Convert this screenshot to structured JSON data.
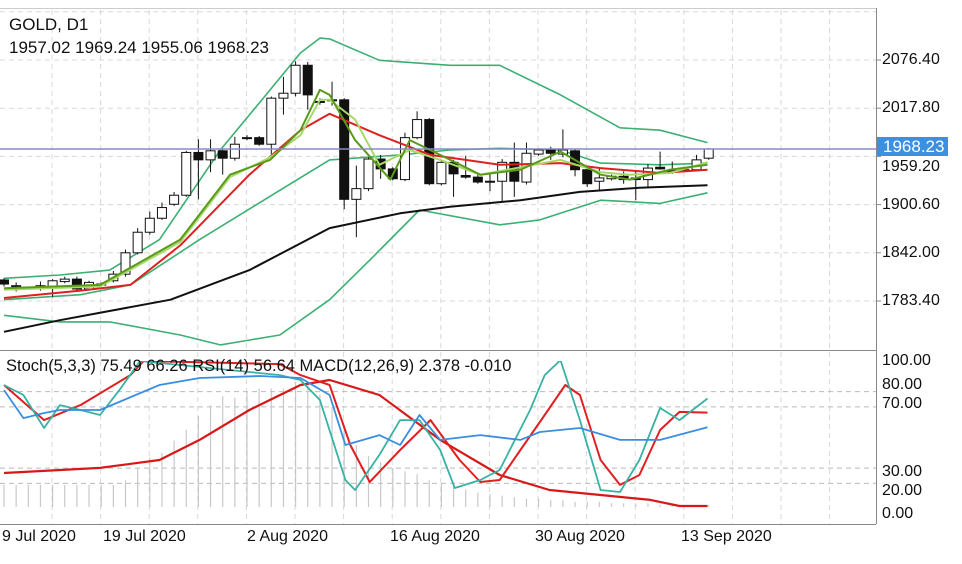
{
  "header": {
    "symbol_timeframe": "GOLD, D1",
    "ohlc": "1957.02 1969.24 1955.06 1968.23"
  },
  "indicator_header": "Stoch(5,3,3) 75.49 66.26 RSI(14) 56.64 MACD(12,26,9) 2.378 -0.010",
  "price_axis": {
    "ticks": [
      "2076.40",
      "2017.80",
      "1959.20",
      "1900.60",
      "1842.00",
      "1783.40"
    ],
    "current_price": "1968.23",
    "range": [
      1734.0,
      2096.0
    ]
  },
  "osc_axis": {
    "ticks": [
      "100.00",
      "80.00",
      "70.00",
      "30.00",
      "20.00",
      "0.00"
    ]
  },
  "date_axis": [
    "9 Jul 2020",
    "19 Jul 2020",
    "2 Aug 2020",
    "16 Aug 2020",
    "30 Aug 2020",
    "13 Sep 2020"
  ],
  "colors": {
    "bollinger": "#3cb073",
    "sma_long": "#111111",
    "ma_red": "#e02020",
    "ma_dark_green": "#5a9a1a",
    "ma_light_green": "#a6d86a",
    "stoch_k": "#38b2a4",
    "stoch_d": "#e02020",
    "rsi": "#3a8ee0",
    "macd_signal": "#d81818",
    "macd_hist": "#c8c8c8",
    "price_line": "#8a88c8",
    "price_tag": "#3d8fe0"
  },
  "chart_data": {
    "type": "candlestick",
    "title": "GOLD, D1",
    "ylim": [
      1734.0,
      2096.0
    ],
    "candles": [
      [
        1809,
        1811,
        1801,
        1804
      ],
      [
        1802,
        1806,
        1795,
        1798
      ],
      [
        1799,
        1801,
        1798,
        1800
      ],
      [
        1799,
        1807,
        1796,
        1802
      ],
      [
        1800,
        1810,
        1788,
        1808
      ],
      [
        1807,
        1813,
        1805,
        1810
      ],
      [
        1810,
        1813,
        1795,
        1798
      ],
      [
        1798,
        1808,
        1796,
        1806
      ],
      [
        1804,
        1806,
        1802,
        1804
      ],
      [
        1808,
        1820,
        1806,
        1816
      ],
      [
        1816,
        1846,
        1813,
        1842
      ],
      [
        1842,
        1872,
        1840,
        1867
      ],
      [
        1867,
        1892,
        1864,
        1884
      ],
      [
        1884,
        1903,
        1882,
        1897
      ],
      [
        1901,
        1916,
        1899,
        1912
      ],
      [
        1912,
        1966,
        1910,
        1964
      ],
      [
        1964,
        1980,
        1907,
        1955
      ],
      [
        1955,
        1980,
        1940,
        1966
      ],
      [
        1966,
        1968,
        1937,
        1957
      ],
      [
        1957,
        1983,
        1954,
        1974
      ],
      [
        1982,
        1985,
        1979,
        1982
      ],
      [
        1982,
        1984,
        1972,
        1974
      ],
      [
        1974,
        2032,
        1962,
        2030
      ],
      [
        2030,
        2056,
        2010,
        2036
      ],
      [
        2036,
        2075,
        2032,
        2070
      ],
      [
        2070,
        2074,
        2016,
        2034
      ],
      [
        2026,
        2030,
        2022,
        2026
      ],
      [
        2028,
        2050,
        2021,
        2028
      ],
      [
        2028,
        2030,
        1895,
        1907
      ],
      [
        1907,
        1948,
        1861,
        1920
      ],
      [
        1920,
        1958,
        1917,
        1956
      ],
      [
        1956,
        1961,
        1932,
        1944
      ],
      [
        1944,
        1946,
        1930,
        1932
      ],
      [
        1931,
        1988,
        1929,
        1982
      ],
      [
        1982,
        2014,
        1980,
        2004
      ],
      [
        2004,
        2006,
        1924,
        1926
      ],
      [
        1926,
        1955,
        1924,
        1952
      ],
      [
        1952,
        1955,
        1910,
        1938
      ],
      [
        1936,
        1960,
        1932,
        1934
      ],
      [
        1934,
        1937,
        1926,
        1928
      ],
      [
        1929,
        1940,
        1917,
        1929
      ],
      [
        1929,
        1956,
        1904,
        1952
      ],
      [
        1952,
        1976,
        1910,
        1929
      ],
      [
        1928,
        1976,
        1925,
        1963
      ],
      [
        1962,
        1969,
        1960,
        1967
      ],
      [
        1967,
        1971,
        1955,
        1963
      ],
      [
        1962,
        1992,
        1958,
        1967
      ],
      [
        1966,
        1968,
        1935,
        1943
      ],
      [
        1943,
        1944,
        1922,
        1926
      ],
      [
        1929,
        1946,
        1918,
        1933
      ],
      [
        1932,
        1937,
        1930,
        1935
      ],
      [
        1935,
        1941,
        1926,
        1931
      ],
      [
        1933,
        1941,
        1906,
        1931
      ],
      [
        1931,
        1950,
        1922,
        1945
      ],
      [
        1946,
        1965,
        1943,
        1944
      ],
      [
        1942,
        1953,
        1938,
        1942
      ],
      [
        1943,
        1945,
        1940,
        1943
      ],
      [
        1943,
        1961,
        1941,
        1955
      ],
      [
        1957.02,
        1969.24,
        1955.06,
        1968.23
      ]
    ],
    "overlays": [
      {
        "name": "bb-upper",
        "color": "bollinger",
        "points": [
          [
            0,
            1811
          ],
          [
            4.6,
            1815
          ],
          [
            8.7,
            1821
          ],
          [
            12.8,
            1858
          ],
          [
            17.8,
            1967
          ],
          [
            21.9,
            2040
          ],
          [
            24.4,
            2085
          ],
          [
            26,
            2103
          ],
          [
            26.8,
            2102
          ],
          [
            30.9,
            2076
          ],
          [
            36.7,
            2070
          ],
          [
            40.8,
            2070
          ],
          [
            45.8,
            2034
          ],
          [
            50.7,
            1994
          ],
          [
            54,
            1991
          ],
          [
            57.9,
            1976
          ]
        ]
      },
      {
        "name": "bb-middle",
        "color": "bollinger",
        "points": [
          [
            0,
            1785
          ],
          [
            6.3,
            1791
          ],
          [
            10.4,
            1803
          ],
          [
            16.1,
            1858
          ],
          [
            22.7,
            1918
          ],
          [
            26.8,
            1955
          ],
          [
            32.6,
            1961
          ],
          [
            36.7,
            1967
          ],
          [
            40.8,
            1969
          ],
          [
            45.8,
            1967
          ],
          [
            49.1,
            1951
          ],
          [
            54,
            1949
          ],
          [
            57.9,
            1951
          ]
        ]
      },
      {
        "name": "bb-lower",
        "color": "bollinger",
        "points": [
          [
            0,
            1766
          ],
          [
            4.6,
            1758
          ],
          [
            8.7,
            1758
          ],
          [
            14.5,
            1742
          ],
          [
            17.8,
            1730
          ],
          [
            22.7,
            1742
          ],
          [
            26.8,
            1785
          ],
          [
            30.1,
            1833
          ],
          [
            34.2,
            1894
          ],
          [
            40.8,
            1876
          ],
          [
            44.1,
            1882
          ],
          [
            49.1,
            1906
          ],
          [
            54,
            1902
          ],
          [
            57.9,
            1915
          ]
        ]
      },
      {
        "name": "sma-long",
        "color": "sma_long",
        "points": [
          [
            0,
            1746
          ],
          [
            4.6,
            1760
          ],
          [
            13.7,
            1785
          ],
          [
            20.2,
            1821
          ],
          [
            26.8,
            1872
          ],
          [
            32.6,
            1890
          ],
          [
            36.7,
            1898
          ],
          [
            42.5,
            1906
          ],
          [
            47.4,
            1916
          ],
          [
            52.3,
            1921
          ],
          [
            57.9,
            1924
          ]
        ]
      },
      {
        "name": "ma-red",
        "color": "ma_red",
        "points": [
          [
            0,
            1787
          ],
          [
            6.3,
            1796
          ],
          [
            10.4,
            1803
          ],
          [
            14.5,
            1851
          ],
          [
            20.2,
            1937
          ],
          [
            24.4,
            1991
          ],
          [
            26.8,
            2011
          ],
          [
            30.9,
            1985
          ],
          [
            35.1,
            1961
          ],
          [
            40.8,
            1949
          ],
          [
            45.8,
            1951
          ],
          [
            49.1,
            1945
          ],
          [
            54,
            1939
          ],
          [
            57.9,
            1943
          ]
        ]
      },
      {
        "name": "ma-light-green",
        "color": "ma_light_green",
        "points": [
          [
            0,
            1797
          ],
          [
            7.9,
            1801
          ],
          [
            14.5,
            1855
          ],
          [
            18.6,
            1934
          ],
          [
            21.9,
            1958
          ],
          [
            24.4,
            1985
          ],
          [
            26,
            2028
          ],
          [
            26.8,
            2028
          ],
          [
            28.9,
            2004
          ],
          [
            30.9,
            1949
          ],
          [
            33.4,
            1967
          ],
          [
            35.9,
            1955
          ],
          [
            39.2,
            1937
          ],
          [
            42.5,
            1946
          ],
          [
            45.8,
            1955
          ],
          [
            49.1,
            1940
          ],
          [
            51.5,
            1937
          ],
          [
            54.8,
            1939
          ],
          [
            57.9,
            1952
          ]
        ]
      },
      {
        "name": "ma-dark-green",
        "color": "ma_dark_green",
        "points": [
          [
            0,
            1799
          ],
          [
            7.9,
            1803
          ],
          [
            14.5,
            1858
          ],
          [
            18.6,
            1937
          ],
          [
            21.9,
            1955
          ],
          [
            24.4,
            1991
          ],
          [
            26,
            2040
          ],
          [
            26.8,
            2034
          ],
          [
            28.9,
            1979
          ],
          [
            31.8,
            1931
          ],
          [
            33.4,
            1979
          ],
          [
            35.9,
            1961
          ],
          [
            39.2,
            1937
          ],
          [
            42.5,
            1943
          ],
          [
            45.8,
            1965
          ],
          [
            49.1,
            1937
          ],
          [
            51.5,
            1931
          ],
          [
            54.8,
            1943
          ],
          [
            57.9,
            1949
          ]
        ]
      }
    ],
    "oscillator": {
      "ylim": [
        0,
        100
      ],
      "levels": [
        80,
        70,
        30,
        20
      ],
      "rsi": [
        [
          0,
          81
        ],
        [
          1.6,
          62.7
        ],
        [
          3.3,
          66
        ],
        [
          4.6,
          68
        ],
        [
          7.9,
          68
        ],
        [
          12.8,
          84.3
        ],
        [
          16.1,
          88.9
        ],
        [
          21.1,
          90.2
        ],
        [
          24.4,
          88.9
        ],
        [
          26.8,
          77.8
        ],
        [
          28.1,
          45.1
        ],
        [
          30.9,
          51.6
        ],
        [
          32.6,
          45.1
        ],
        [
          34.2,
          64.7
        ],
        [
          35.9,
          48.4
        ],
        [
          39.2,
          51.6
        ],
        [
          42.5,
          48.4
        ],
        [
          44.1,
          53.6
        ],
        [
          47.4,
          56.2
        ],
        [
          50.7,
          48.4
        ],
        [
          54,
          48.4
        ],
        [
          57.9,
          56.64
        ]
      ],
      "stoch_k": [
        [
          0,
          84.3
        ],
        [
          1.6,
          77.8
        ],
        [
          3.3,
          56.2
        ],
        [
          4.6,
          71.2
        ],
        [
          6.3,
          68
        ],
        [
          7.9,
          64.7
        ],
        [
          9.5,
          81
        ],
        [
          11.2,
          100
        ],
        [
          22.7,
          90.8
        ],
        [
          24.4,
          87.6
        ],
        [
          26,
          74.5
        ],
        [
          28.1,
          22.2
        ],
        [
          28.9,
          15.7
        ],
        [
          30.9,
          38.6
        ],
        [
          32.6,
          61.4
        ],
        [
          34.2,
          61.4
        ],
        [
          35.9,
          41.8
        ],
        [
          37.1,
          17
        ],
        [
          39.2,
          22.2
        ],
        [
          40.8,
          28.8
        ],
        [
          43.3,
          68
        ],
        [
          44.5,
          90.8
        ],
        [
          45.8,
          100.6
        ],
        [
          47.4,
          61.4
        ],
        [
          49.1,
          15.7
        ],
        [
          50.7,
          14.4
        ],
        [
          52.3,
          35.3
        ],
        [
          54,
          69.3
        ],
        [
          55.6,
          61.4
        ],
        [
          57.9,
          75.49
        ]
      ],
      "stoch_d": [
        [
          0,
          84.3
        ],
        [
          3.3,
          61.4
        ],
        [
          6.3,
          71.2
        ],
        [
          10.4,
          90.8
        ],
        [
          11.5,
          100
        ],
        [
          22.7,
          98
        ],
        [
          24.4,
          90.8
        ],
        [
          26.8,
          84.3
        ],
        [
          28.5,
          45.1
        ],
        [
          30.1,
          20.9
        ],
        [
          32.6,
          41.8
        ],
        [
          35.1,
          61.4
        ],
        [
          37.5,
          35.3
        ],
        [
          39.2,
          20.9
        ],
        [
          40.8,
          22.2
        ],
        [
          42.5,
          41.8
        ],
        [
          44.5,
          64.7
        ],
        [
          46.2,
          84.3
        ],
        [
          47.4,
          77.8
        ],
        [
          49.1,
          35.3
        ],
        [
          50.7,
          19
        ],
        [
          52.3,
          25.5
        ],
        [
          54,
          54.9
        ],
        [
          55.6,
          66.7
        ],
        [
          57.9,
          66.26
        ]
      ],
      "macd_signal": [
        [
          0,
          26.8
        ],
        [
          7.9,
          30.1
        ],
        [
          12.8,
          35.3
        ],
        [
          16.1,
          48.4
        ],
        [
          20.2,
          68
        ],
        [
          24.4,
          84.3
        ],
        [
          26.8,
          87.6
        ],
        [
          30.9,
          77.8
        ],
        [
          35.9,
          48.4
        ],
        [
          40.8,
          25.5
        ],
        [
          44.9,
          15.7
        ],
        [
          49.1,
          12.4
        ],
        [
          53.2,
          9.2
        ],
        [
          55.6,
          5.2
        ],
        [
          57.9,
          5.2
        ]
      ],
      "macd_hist_base": 4.6,
      "macd_hist": [
        19,
        19,
        19,
        19,
        19,
        19,
        19,
        19,
        19,
        19,
        22,
        30,
        37,
        40,
        48,
        55,
        64,
        71,
        77,
        76,
        80,
        82,
        82,
        82,
        86,
        84,
        78,
        70,
        55,
        45,
        38,
        34,
        30,
        28,
        26,
        22,
        20,
        18,
        16,
        14,
        13,
        12,
        11,
        10,
        10,
        9,
        9,
        8,
        8,
        8,
        7,
        7,
        7,
        7,
        6,
        6,
        6,
        6,
        6
      ]
    }
  }
}
